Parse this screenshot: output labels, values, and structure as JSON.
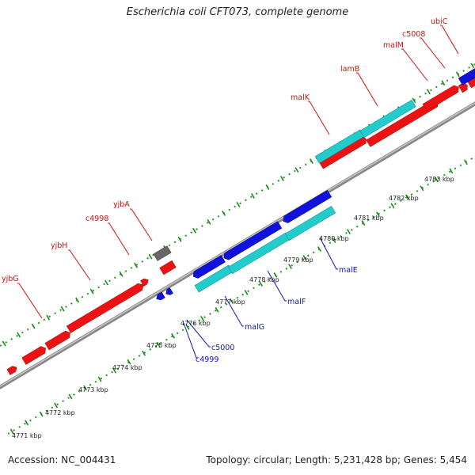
{
  "title": "Escherichia coli CFT073, complete genome",
  "footer": {
    "accession": "Accession: NC_004431",
    "summary": "Topology: circular; Length: 5,231,428 bp; Genes: 5,454"
  },
  "colors": {
    "forward_gene": "#ee1111",
    "reverse_gene": "#1111dd",
    "rna_gene": "#22cccc",
    "other_gene": "#666666",
    "backbone": "#999999",
    "tick": "#229922",
    "label_forward": "#cc1111",
    "label_reverse": "#1111cc"
  },
  "scale_ticks": [
    "4771 kbp",
    "4772 kbp",
    "4773 kbp",
    "4774 kbp",
    "4775 kbp",
    "4776 kbp",
    "4777 kbp",
    "4778 kbp",
    "4779 kbp",
    "4780 kbp",
    "4781 kbp",
    "4782 kbp",
    "4783 kbp"
  ],
  "gene_labels": {
    "forward": [
      "yjbG",
      "yjbH",
      "c4998",
      "yjbA",
      "malK",
      "lamB",
      "malM",
      "c5008",
      "ubiC"
    ],
    "reverse": [
      "c4999",
      "c5000",
      "malG",
      "malF",
      "malE"
    ]
  }
}
